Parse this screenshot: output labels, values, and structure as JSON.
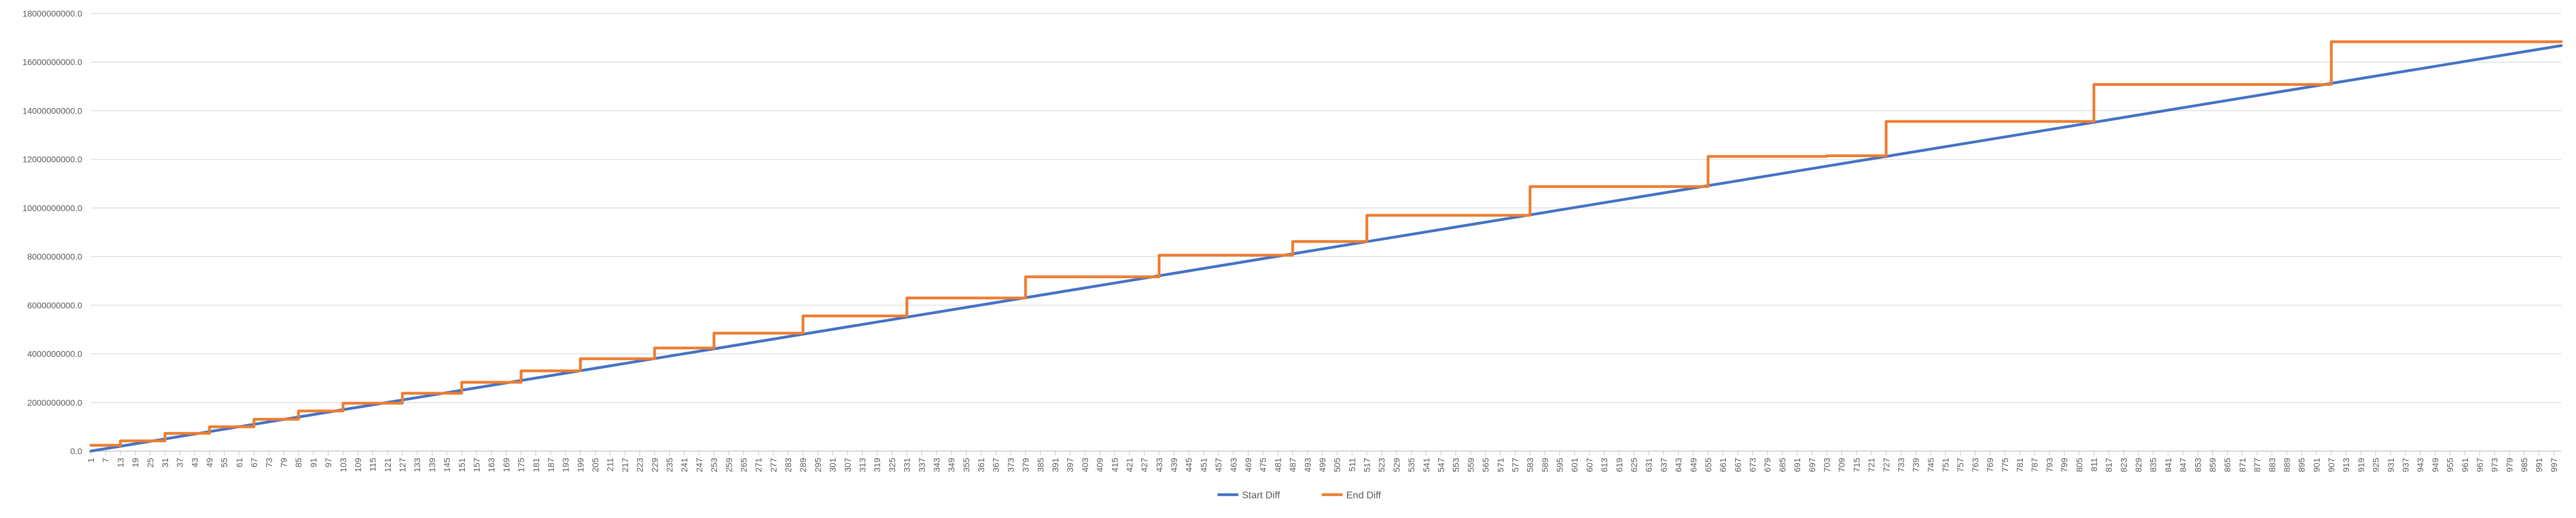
{
  "chart_data": {
    "type": "line",
    "title": "",
    "xlabel": "",
    "ylabel": "",
    "x_range": [
      1,
      1000
    ],
    "x_tick_start": 1,
    "x_tick_step": 6,
    "ylim": [
      0,
      18000000000
    ],
    "y_ticks": [
      0,
      2000000000,
      4000000000,
      6000000000,
      8000000000,
      10000000000,
      12000000000,
      14000000000,
      16000000000,
      18000000000
    ],
    "y_tick_labels": [
      "0.0",
      "2000000000.0",
      "4000000000.0",
      "6000000000.0",
      "8000000000.0",
      "10000000000.0",
      "12000000000.0",
      "14000000000.0",
      "16000000000.0",
      "18000000000.0"
    ],
    "grid": "horizontal",
    "legend_position": "bottom",
    "series": [
      {
        "name": "Start Diff",
        "color": "#4472C4",
        "points": [
          [
            1,
            0
          ],
          [
            1000,
            16680000000
          ]
        ]
      },
      {
        "name": "End Diff",
        "color": "#ED7D31",
        "step_points": [
          [
            1,
            240000000
          ],
          [
            13,
            420000000
          ],
          [
            31,
            730000000
          ],
          [
            49,
            1000000000
          ],
          [
            67,
            1310000000
          ],
          [
            85,
            1650000000
          ],
          [
            103,
            1970000000
          ],
          [
            127,
            2380000000
          ],
          [
            151,
            2830000000
          ],
          [
            175,
            3300000000
          ],
          [
            199,
            3800000000
          ],
          [
            229,
            4240000000
          ],
          [
            253,
            4850000000
          ],
          [
            289,
            5560000000
          ],
          [
            331,
            6300000000
          ],
          [
            379,
            7170000000
          ],
          [
            433,
            8060000000
          ],
          [
            487,
            8620000000
          ],
          [
            517,
            9700000000
          ],
          [
            583,
            10880000000
          ],
          [
            655,
            12120000000
          ],
          [
            703,
            12150000000
          ],
          [
            727,
            13560000000
          ],
          [
            811,
            15080000000
          ],
          [
            907,
            16840000000
          ],
          [
            1000,
            16840000000
          ]
        ]
      }
    ]
  }
}
